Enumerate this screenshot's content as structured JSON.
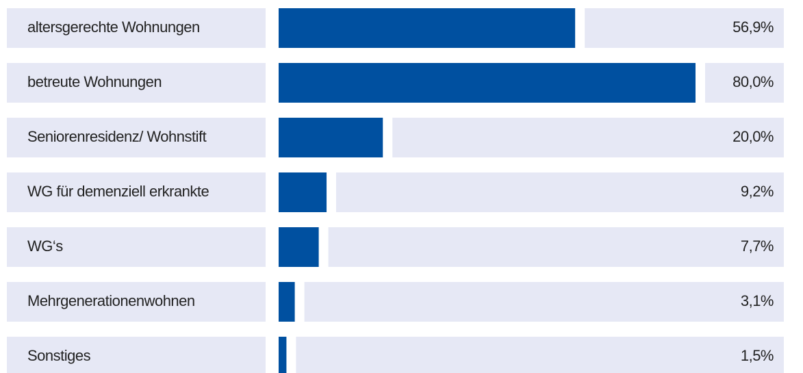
{
  "chart_data": {
    "type": "barh",
    "categories": [
      "altersgerechte Wohnungen",
      "betreute Wohnungen",
      "Seniorenresidenz/ Wohnstift",
      "WG  für demenziell erkrankte",
      "WG‘s",
      "Mehrgenerationenwohnen",
      "Sonstiges"
    ],
    "values": [
      56.9,
      80.0,
      20.0,
      9.2,
      7.7,
      3.1,
      1.5
    ],
    "value_labels": [
      "56,9%",
      "80,0%",
      "20,0%",
      "9,2%",
      "7,7%",
      "3,1%",
      "1,5%"
    ],
    "color": "#0050a0"
  }
}
